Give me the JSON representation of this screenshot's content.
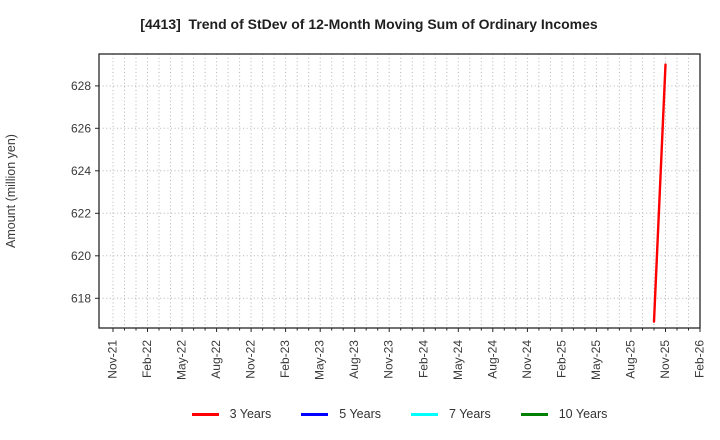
{
  "chart_data": {
    "type": "line",
    "title": "[4413]  Trend of StDev of 12-Month Moving Sum of Ordinary Incomes",
    "ylabel": "Amount (million yen)",
    "x_axis": {
      "first_month": "Nov-21",
      "last_month": "Feb-26",
      "months_total": 52,
      "tick_every_months": 3,
      "tick_labels": [
        "Nov-21",
        "Feb-22",
        "May-22",
        "Aug-22",
        "Nov-22",
        "Feb-23",
        "May-23",
        "Aug-23",
        "Nov-23",
        "Feb-24",
        "May-24",
        "Aug-24",
        "Nov-24",
        "Feb-25",
        "May-25",
        "Aug-25",
        "Nov-25",
        "Feb-26"
      ],
      "minor_grid": "monthly-dotted"
    },
    "y_axis": {
      "ticks": [
        618,
        620,
        622,
        624,
        626,
        628
      ],
      "ylim": [
        616.6,
        629.5
      ]
    },
    "grid": "dotted",
    "legend_position": "bottom-center",
    "series": [
      {
        "name": "3 Years",
        "color": "#ff0000",
        "points": [
          {
            "x_label": "Oct-25",
            "x_index": 47,
            "y": 616.9
          },
          {
            "x_label": "Nov-25",
            "x_index": 48,
            "y": 629.0
          }
        ]
      },
      {
        "name": "5 Years",
        "color": "#0000ff",
        "points": []
      },
      {
        "name": "7 Years",
        "color": "#00ffff",
        "points": []
      },
      {
        "name": "10 Years",
        "color": "#008000",
        "points": []
      }
    ]
  }
}
